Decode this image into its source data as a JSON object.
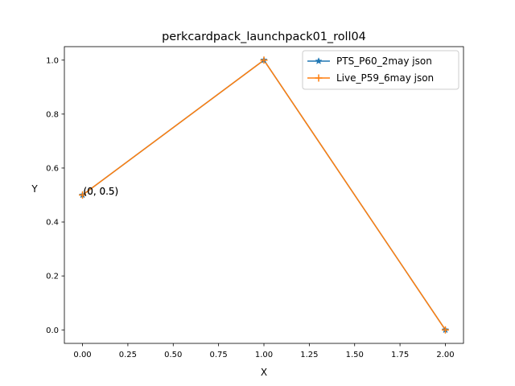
{
  "chart_data": {
    "type": "line",
    "title": "perkcardpack_launchpack01_roll04",
    "xlabel": "X",
    "ylabel": "Y",
    "xlim": [
      -0.1,
      2.1
    ],
    "ylim": [
      -0.05,
      1.05
    ],
    "xticks": [
      0.0,
      0.25,
      0.5,
      0.75,
      1.0,
      1.25,
      1.5,
      1.75,
      2.0
    ],
    "xtick_labels": [
      "0.00",
      "0.25",
      "0.50",
      "0.75",
      "1.00",
      "1.25",
      "1.50",
      "1.75",
      "2.00"
    ],
    "yticks": [
      0.0,
      0.2,
      0.4,
      0.6,
      0.8,
      1.0
    ],
    "ytick_labels": [
      "0.0",
      "0.2",
      "0.4",
      "0.6",
      "0.8",
      "1.0"
    ],
    "grid": false,
    "legend": "upper-right",
    "series": [
      {
        "name": "PTS_P60_2may json",
        "color": "#1f77b4",
        "marker": "star",
        "x": [
          0,
          1,
          2
        ],
        "y": [
          0.5,
          1.0,
          0.0
        ]
      },
      {
        "name": "Live_P59_6may json",
        "color": "#ff7f0e",
        "marker": "plus",
        "x": [
          0,
          1,
          2
        ],
        "y": [
          0.5,
          1.0,
          0.0
        ]
      }
    ],
    "annotations": [
      {
        "text": "(0, 0.5)",
        "x": 0,
        "y": 0.5
      },
      {
        "text": "(0, 0.5)",
        "x": 0,
        "y": 0.5
      }
    ]
  }
}
